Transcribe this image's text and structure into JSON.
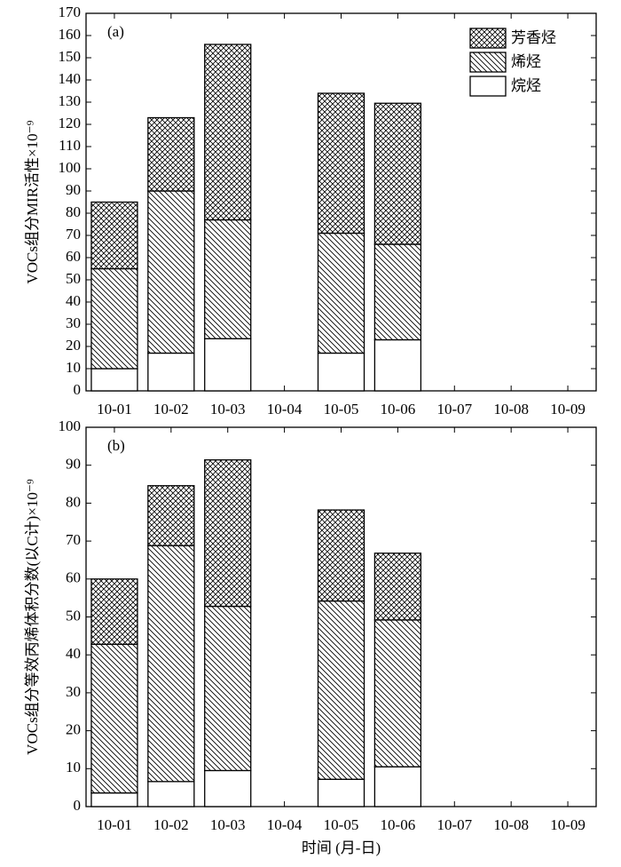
{
  "chart_data": [
    {
      "type": "stacked_bar",
      "panel_label": "(a)",
      "ylabel": "VOCs组分MIR活性×10⁻⁹",
      "categories": [
        "10-01",
        "10-02",
        "10-03",
        "10-04",
        "10-05",
        "10-06",
        "10-07",
        "10-08",
        "10-09"
      ],
      "series": [
        {
          "name": "烷烃",
          "pattern": "none",
          "values": [
            10,
            17,
            23.5,
            null,
            17,
            23,
            null,
            null,
            null
          ]
        },
        {
          "name": "烯烃",
          "pattern": "diagonal",
          "values": [
            45,
            73,
            53.5,
            null,
            54,
            43,
            null,
            null,
            null
          ]
        },
        {
          "name": "芳香烃",
          "pattern": "crosshatch",
          "values": [
            30,
            33,
            79,
            null,
            63,
            63.5,
            null,
            null,
            null
          ]
        }
      ],
      "ylim": [
        0,
        170
      ],
      "yticks": [
        0,
        10,
        20,
        30,
        40,
        50,
        60,
        70,
        80,
        90,
        100,
        110,
        120,
        130,
        140,
        150,
        160,
        170
      ],
      "legend": "upper right"
    },
    {
      "type": "stacked_bar",
      "panel_label": "(b)",
      "ylabel": "VOCs组分等效丙烯体积分数(以C计)×10⁻⁹",
      "xlabel": "时间 (月-日)",
      "categories": [
        "10-01",
        "10-02",
        "10-03",
        "10-04",
        "10-05",
        "10-06",
        "10-07",
        "10-08",
        "10-09"
      ],
      "series": [
        {
          "pattern": "none",
          "values": [
            3.6,
            6.6,
            9.5,
            null,
            7.2,
            10.5,
            null,
            null,
            null
          ]
        },
        {
          "pattern": "diagonal",
          "values": [
            39.2,
            62.2,
            43.3,
            null,
            47,
            38.7,
            null,
            null,
            null
          ]
        },
        {
          "pattern": "crosshatch",
          "values": [
            17.2,
            15.8,
            38.6,
            null,
            24,
            17.6,
            null,
            null,
            null
          ]
        }
      ],
      "ylim": [
        0,
        100
      ],
      "yticks": [
        0,
        10,
        20,
        30,
        40,
        50,
        60,
        70,
        80,
        90,
        100
      ]
    }
  ]
}
